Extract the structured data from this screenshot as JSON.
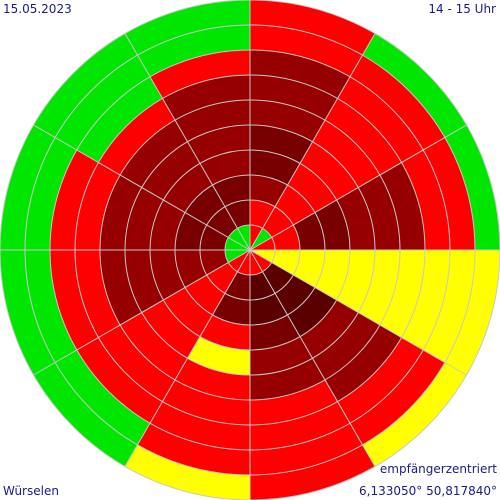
{
  "header": {
    "date": "15.05.2023",
    "time_range": "14 - 15 Uhr"
  },
  "footer": {
    "mode": "empfängerzentriert",
    "location": "Würselen",
    "coordinates": "6,133050° 50,817840°"
  },
  "chart_data": {
    "type": "polar-sector-rings",
    "sectors": 12,
    "rings": 10,
    "start_angle_deg": 0,
    "direction": "clockwise",
    "grid": true,
    "colors": {
      "G": "#00e600",
      "Y": "#ffff00",
      "R": "#ff0000",
      "D": "#960000",
      "M": "#780000",
      "K": "#5a0000"
    },
    "grid_color": "#c8c8c8",
    "cells_inner_to_outer": [
      [
        "R",
        "R",
        "D",
        "M",
        "M",
        "D",
        "D",
        "D",
        "R",
        "R"
      ],
      [
        "G",
        "R",
        "R",
        "R",
        "R",
        "R",
        "R",
        "R",
        "R",
        "G"
      ],
      [
        "R",
        "R",
        "M",
        "M",
        "D",
        "D",
        "D",
        "R",
        "R",
        "G"
      ],
      [
        "Y",
        "Y",
        "Y",
        "Y",
        "Y",
        "Y",
        "Y",
        "Y",
        "Y",
        "Y"
      ],
      [
        "R",
        "K",
        "K",
        "K",
        "D",
        "D",
        "D",
        "R",
        "R",
        "Y"
      ],
      [
        "R",
        "K",
        "K",
        "M",
        "D",
        "D",
        "R",
        "R",
        "R",
        "R"
      ],
      [
        "R",
        "M",
        "M",
        "R",
        "Y",
        "R",
        "R",
        "R",
        "R",
        "Y"
      ],
      [
        "R",
        "R",
        "R",
        "R",
        "R",
        "R",
        "R",
        "R",
        "G",
        "G"
      ],
      [
        "G",
        "D",
        "D",
        "D",
        "D",
        "D",
        "R",
        "R",
        "G",
        "G"
      ],
      [
        "G",
        "M",
        "M",
        "D",
        "D",
        "D",
        "R",
        "R",
        "G",
        "G"
      ],
      [
        "G",
        "M",
        "M",
        "D",
        "D",
        "D",
        "R",
        "G",
        "G",
        "G"
      ],
      [
        "G",
        "M",
        "M",
        "D",
        "D",
        "D",
        "D",
        "R",
        "G",
        "G"
      ]
    ]
  }
}
